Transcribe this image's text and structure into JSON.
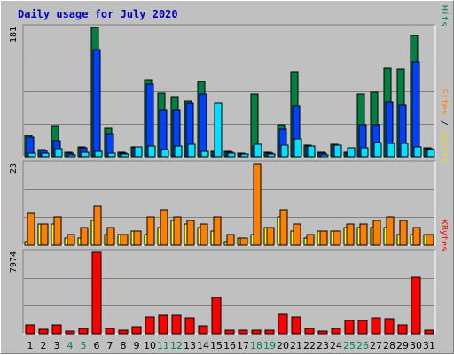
{
  "title": "Daily usage for July 2020",
  "colors": {
    "title": "#0000c0",
    "hits": "#008040",
    "files": "#0040ff",
    "pages": "#00e0ff",
    "visits": "#ffff00",
    "sites": "#ff8000",
    "kbytes": "#ff0000",
    "weekend_day": "#00805c",
    "weekday": "#000000",
    "separator": "#000000"
  },
  "panels": {
    "top": {
      "max_label": "181",
      "legend": [
        {
          "text": "Pages",
          "color": "#00c8c8"
        },
        {
          "text": " / ",
          "color": "#000000"
        },
        {
          "text": "Files",
          "color": "#0040ff"
        },
        {
          "text": " / ",
          "color": "#000000"
        },
        {
          "text": "Hits",
          "color": "#008040"
        }
      ]
    },
    "middle": {
      "max_label": "23",
      "legend": [
        {
          "text": "Sites",
          "color": "#ff8000"
        },
        {
          "text": " / ",
          "color": "#000000"
        },
        {
          "text": "Visits",
          "color": "#e0e000"
        }
      ]
    },
    "bottom": {
      "max_label": "7974",
      "legend": [
        {
          "text": "KBytes",
          "color": "#ff0000"
        }
      ]
    }
  },
  "chart_data": {
    "type": "bar",
    "title": "Daily usage for July 2020",
    "categories": [
      "1",
      "2",
      "3",
      "4",
      "5",
      "6",
      "7",
      "8",
      "9",
      "10",
      "11",
      "12",
      "13",
      "14",
      "15",
      "16",
      "17",
      "18",
      "19",
      "20",
      "21",
      "22",
      "23",
      "24",
      "25",
      "26",
      "27",
      "28",
      "29",
      "30",
      "31"
    ],
    "weekend_days": [
      "4",
      "5",
      "11",
      "12",
      "18",
      "19",
      "25",
      "26"
    ],
    "panels": [
      {
        "name": "hits-files-pages",
        "ymax": 181,
        "series": [
          {
            "name": "Hits",
            "values": [
              30,
              10,
              43,
              6,
              14,
              181,
              40,
              6,
              14,
              108,
              89,
              83,
              78,
              105,
              7,
              8,
              5,
              88,
              6,
              45,
              119,
              16,
              6,
              17,
              6,
              88,
              91,
              124,
              123,
              170,
              12
            ]
          },
          {
            "name": "Files",
            "values": [
              27,
              9,
              22,
              5,
              12,
              150,
              32,
              5,
              13,
              102,
              66,
              66,
              76,
              88,
              6,
              6,
              4,
              15,
              5,
              39,
              71,
              15,
              5,
              16,
              5,
              45,
              45,
              77,
              72,
              133,
              11
            ]
          },
          {
            "name": "Pages",
            "values": [
              5,
              5,
              11,
              3,
              6,
              8,
              5,
              4,
              14,
              15,
              10,
              15,
              17,
              7,
              76,
              5,
              4,
              17,
              4,
              16,
              25,
              15,
              3,
              16,
              12,
              13,
              20,
              18,
              18,
              14,
              10
            ]
          }
        ]
      },
      {
        "name": "visits-sites",
        "ymax": 23,
        "series": [
          {
            "name": "Visits",
            "values": [
              1,
              6,
              6,
              2,
              2,
              7,
              3,
              3,
              4,
              3,
              5,
              7,
              6,
              5,
              4,
              1,
              2,
              3,
              5,
              8,
              4,
              2,
              4,
              4,
              5,
              5,
              5,
              5,
              3,
              3,
              3
            ]
          },
          {
            "name": "Sites",
            "values": [
              9,
              6,
              8,
              3,
              5,
              11,
              5,
              3,
              4,
              8,
              10,
              8,
              7,
              6,
              8,
              3,
              2,
              23,
              5,
              10,
              6,
              3,
              4,
              4,
              6,
              6,
              7,
              8,
              7,
              5,
              3
            ]
          }
        ]
      },
      {
        "name": "kbytes",
        "ymax": 7974,
        "series": [
          {
            "name": "KBytes",
            "values": [
              889,
              445,
              889,
              222,
              556,
              7974,
              489,
              356,
              667,
              1667,
              1778,
              1778,
              1556,
              778,
              3556,
              333,
              356,
              333,
              333,
              1889,
              1667,
              556,
              222,
              556,
              1333,
              1333,
              1556,
              1444,
              889,
              5556,
              356
            ]
          }
        ]
      }
    ]
  }
}
